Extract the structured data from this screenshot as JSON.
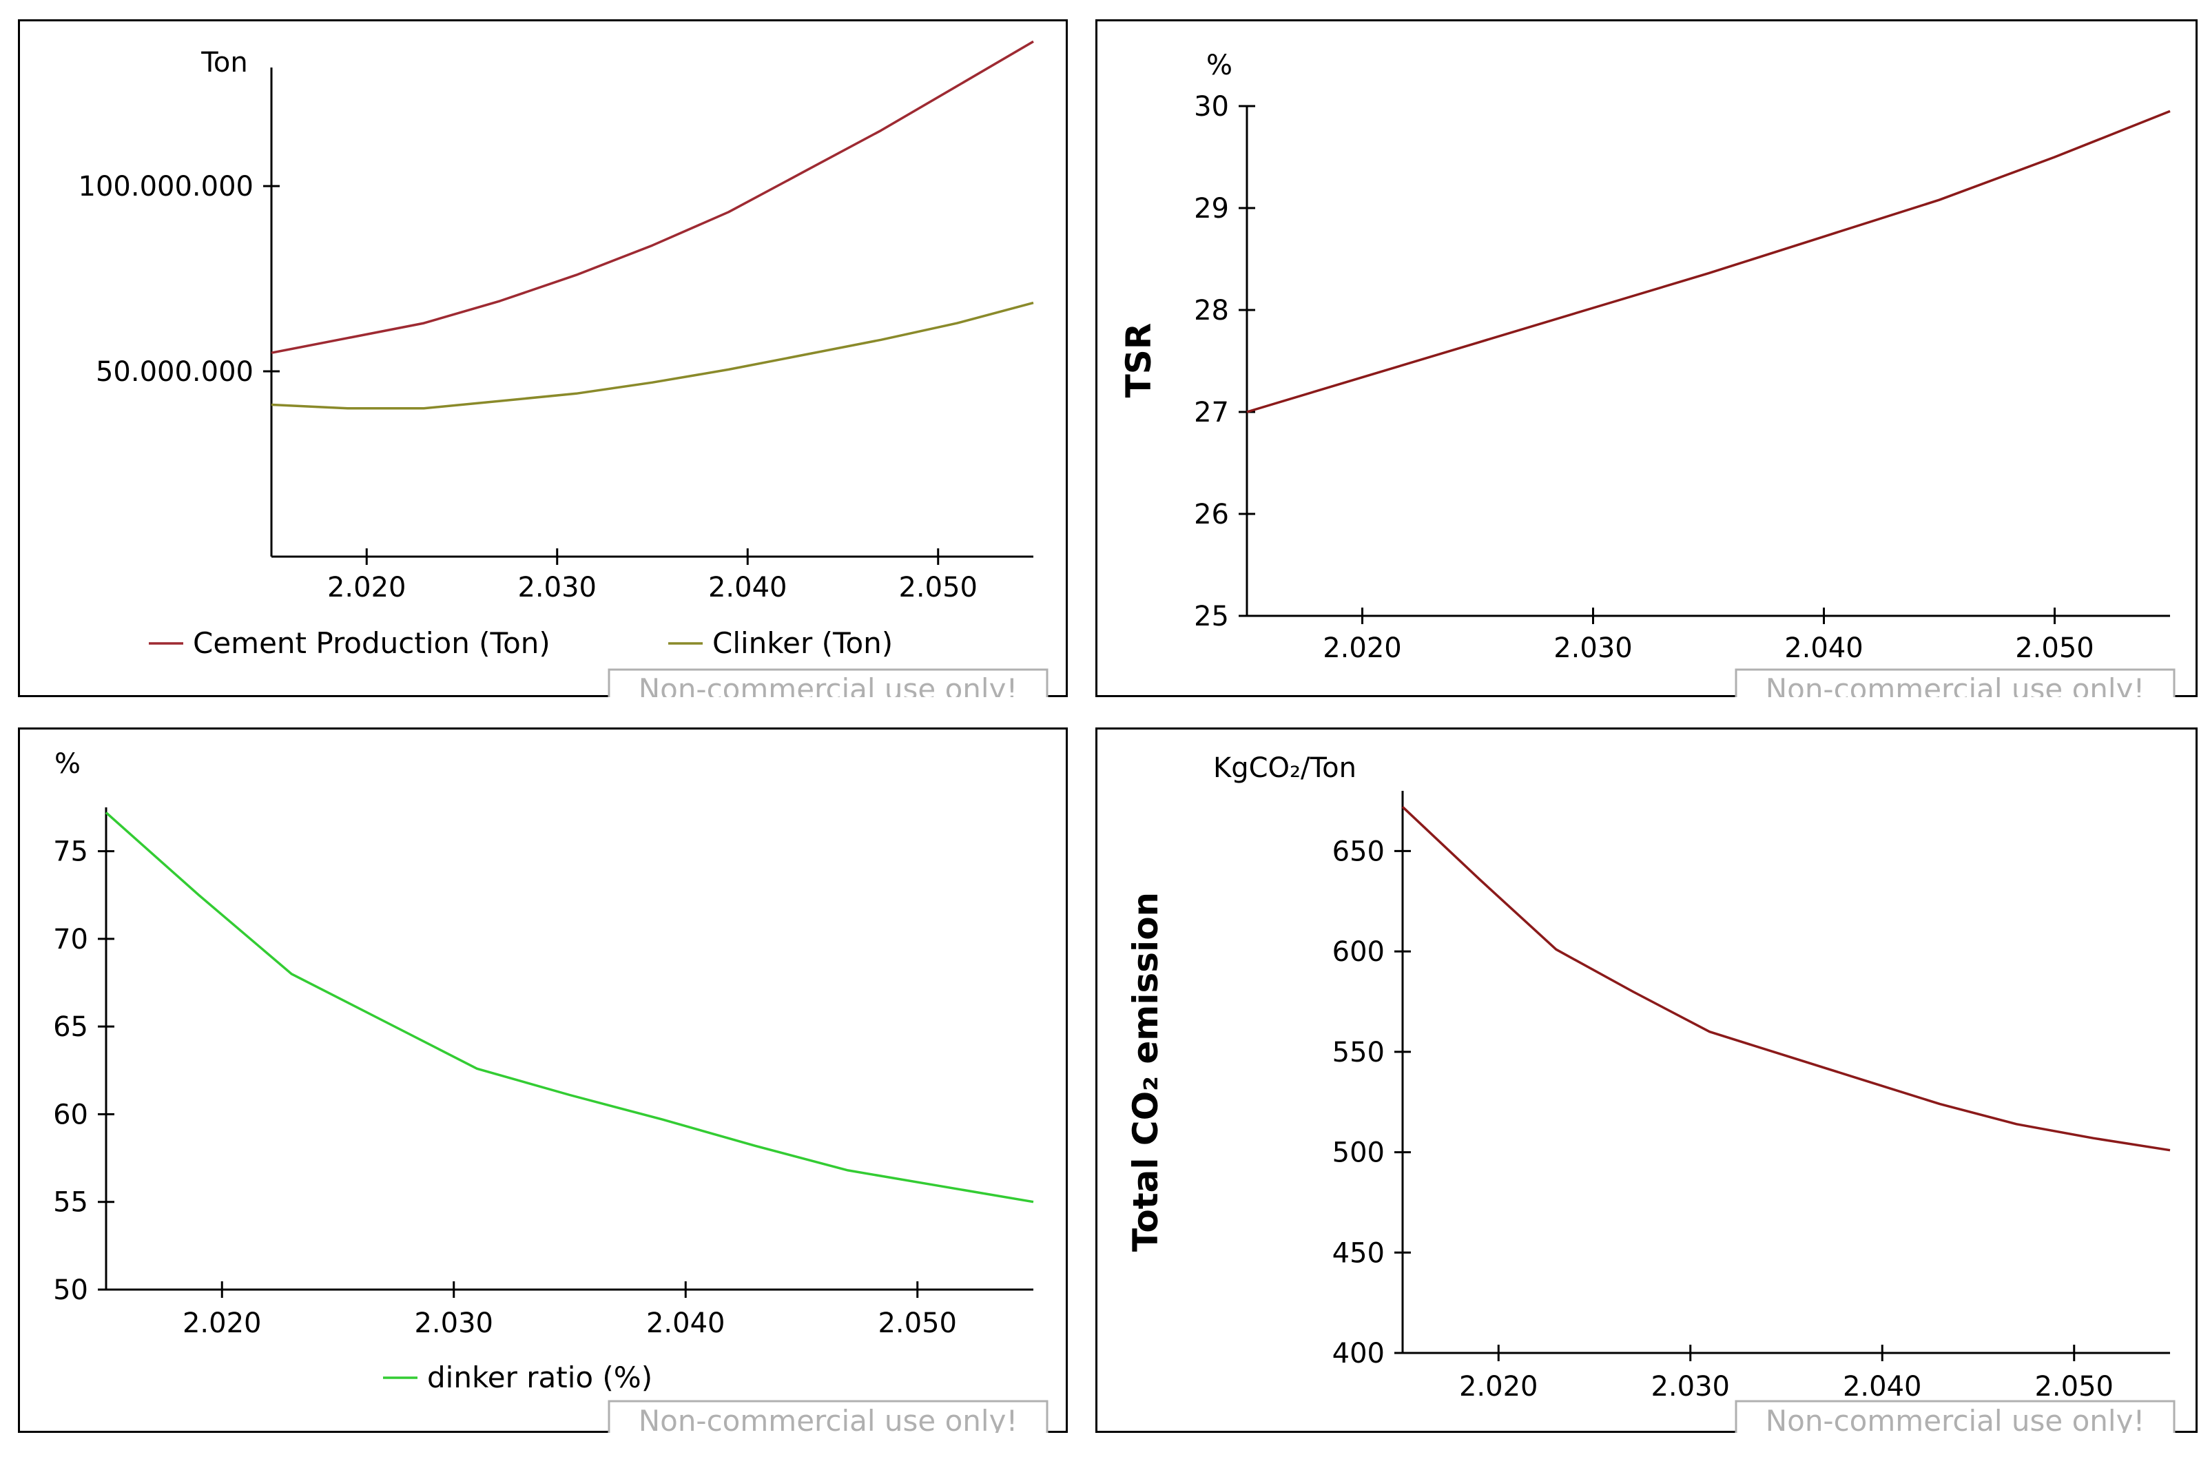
{
  "colors": {
    "frame": "#000000",
    "cement": "#9e2a32",
    "clinker": "#8a8a2a",
    "clinker_ratio": "#33cc33",
    "tsr": "#8b1a1a",
    "co2": "#8b1a1a",
    "watermark": "#b0b0b0"
  },
  "watermark": "Non-commercial use only!",
  "chart_data": [
    {
      "id": "production",
      "type": "line",
      "title": "",
      "xlabel": "",
      "ylabel": "",
      "unit_label": "Ton",
      "xlim": [
        2015,
        2055
      ],
      "ylim": [
        0,
        132000000
      ],
      "x_ticks": [
        2020,
        2030,
        2040,
        2050
      ],
      "x_tick_labels": [
        "2.020",
        "2.030",
        "2.040",
        "2.050"
      ],
      "y_ticks": [
        50000000,
        100000000
      ],
      "y_tick_labels": [
        "50.000.000",
        "100.000.000"
      ],
      "legend_position": "bottom",
      "series": [
        {
          "name": "Cement Production (Ton)",
          "x": [
            2015,
            2019,
            2023,
            2027,
            2031,
            2035,
            2039,
            2043,
            2047,
            2051,
            2055
          ],
          "y": [
            55000000,
            59000000,
            63000000,
            69000000,
            76000000,
            84000000,
            93000000,
            104000000,
            115000000,
            127000000,
            139000000
          ]
        },
        {
          "name": "Clinker (Ton)",
          "x": [
            2015,
            2019,
            2023,
            2027,
            2031,
            2035,
            2039,
            2043,
            2047,
            2051,
            2055
          ],
          "y": [
            41000000,
            40000000,
            40000000,
            42000000,
            44000000,
            47000000,
            50500000,
            54500000,
            58500000,
            63000000,
            68500000
          ]
        }
      ]
    },
    {
      "id": "tsr",
      "type": "line",
      "title": "",
      "xlabel": "",
      "ylabel": "TSR",
      "unit_label": "%",
      "xlim": [
        2015,
        2055
      ],
      "ylim": [
        25,
        30
      ],
      "x_ticks": [
        2020,
        2030,
        2040,
        2050
      ],
      "x_tick_labels": [
        "2.020",
        "2.030",
        "2.040",
        "2.050"
      ],
      "y_ticks": [
        25,
        26,
        27,
        28,
        29,
        30
      ],
      "y_tick_labels": [
        "25",
        "26",
        "27",
        "28",
        "29",
        "30"
      ],
      "legend_position": "none",
      "series": [
        {
          "name": "TSR",
          "x": [
            2015,
            2020,
            2025,
            2030,
            2035,
            2040,
            2045,
            2050,
            2055
          ],
          "y": [
            27.0,
            27.34,
            27.68,
            28.02,
            28.36,
            28.72,
            29.08,
            29.5,
            29.95
          ]
        }
      ]
    },
    {
      "id": "clinker_ratio",
      "type": "line",
      "title": "",
      "xlabel": "",
      "ylabel": "",
      "unit_label": "%",
      "xlim": [
        2015,
        2055
      ],
      "ylim": [
        50,
        77.5
      ],
      "x_ticks": [
        2020,
        2030,
        2040,
        2050
      ],
      "x_tick_labels": [
        "2.020",
        "2.030",
        "2.040",
        "2.050"
      ],
      "y_ticks": [
        50,
        55,
        60,
        65,
        70,
        75
      ],
      "y_tick_labels": [
        "50",
        "55",
        "60",
        "65",
        "70",
        "75"
      ],
      "legend_position": "bottom",
      "series": [
        {
          "name": "dinker ratio (%)",
          "x": [
            2015,
            2019,
            2023,
            2027,
            2031,
            2035,
            2039,
            2043,
            2047,
            2051,
            2055
          ],
          "y": [
            77.2,
            72.5,
            68.0,
            65.3,
            62.6,
            61.1,
            59.7,
            58.2,
            56.8,
            55.9,
            55.0
          ]
        }
      ]
    },
    {
      "id": "co2",
      "type": "line",
      "title": "",
      "xlabel": "",
      "ylabel": "Total CO₂ emission",
      "unit_label": "KgCO₂/Ton",
      "xlim": [
        2015,
        2055
      ],
      "ylim": [
        400,
        680
      ],
      "x_ticks": [
        2020,
        2030,
        2040,
        2050
      ],
      "x_tick_labels": [
        "2.020",
        "2.030",
        "2.040",
        "2.050"
      ],
      "y_ticks": [
        400,
        450,
        500,
        550,
        600,
        650
      ],
      "y_tick_labels": [
        "400",
        "450",
        "500",
        "550",
        "600",
        "650"
      ],
      "legend_position": "none",
      "series": [
        {
          "name": "Total CO2 emission",
          "x": [
            2015,
            2019,
            2023,
            2027,
            2031,
            2035,
            2039,
            2043,
            2047,
            2051,
            2055
          ],
          "y": [
            672,
            636,
            601,
            580,
            560,
            548,
            536,
            524,
            514,
            507,
            501
          ]
        }
      ]
    }
  ]
}
